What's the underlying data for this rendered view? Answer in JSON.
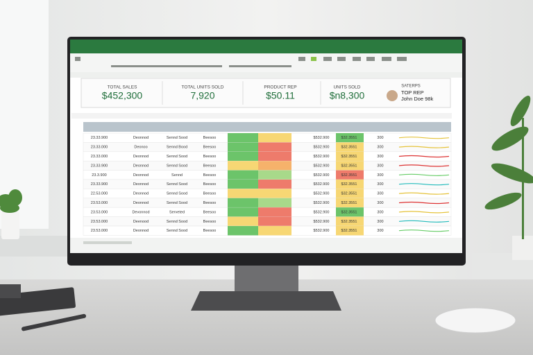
{
  "kpis": [
    {
      "label": "TOTAL SALES",
      "value": "$452,300"
    },
    {
      "label": "TOTAL UNITS SOLD",
      "value": "7,920"
    },
    {
      "label": "PRODUCT REP",
      "value": "$50.11"
    },
    {
      "label": "UNITS SOLD",
      "value": "$n8,300"
    }
  ],
  "top_rep": {
    "header": "SATERPS",
    "label": "TOP REP",
    "name": "John Doe 98k"
  },
  "table": {
    "rows": [
      [
        "23.33.900",
        "Deonnod",
        "Sennd Sood",
        "Beesoo",
        "$532.900",
        "$32.3551",
        "300"
      ],
      [
        "23.33.000",
        "Deonoo",
        "Sennd Bood",
        "Beesoo",
        "$532.900",
        "$32.3551",
        "300"
      ],
      [
        "23.33.000",
        "Deonnod",
        "Sennd Sood",
        "Beesoo",
        "$532.900",
        "$32.3551",
        "300"
      ],
      [
        "23.33.900",
        "Deonnod",
        "Sennd Sood",
        "Beesoo",
        "$532.900",
        "$32.3551",
        "300"
      ],
      [
        "23.3.900",
        "Deonnod",
        "Sennd",
        "Beesoo",
        "$532.900",
        "$32.3551",
        "300"
      ],
      [
        "23.33.900",
        "Deonnod",
        "Sennd Sood",
        "Beesoo",
        "$532.900",
        "$32.3551",
        "300"
      ],
      [
        "22.53.000",
        "Deonnod",
        "Sennd Sood",
        "Beesoo",
        "$532.900",
        "$32.3551",
        "300"
      ],
      [
        "23.53.000",
        "Deonnod",
        "Sennd Sood",
        "Beesoo",
        "$532.900",
        "$32.3551",
        "300"
      ],
      [
        "23.53.000",
        "Devonnod",
        "Serveted",
        "Beesoo",
        "$532.900",
        "$32.3551",
        "300"
      ],
      [
        "23.53.000",
        "Deenood",
        "Sennd Sood",
        "Beesoo",
        "$532.900",
        "$32.3551",
        "300"
      ],
      [
        "23.53.000",
        "Deonnod",
        "Sennd Sood",
        "Beesoo",
        "$532.900",
        "$32.3551",
        "300"
      ]
    ]
  }
}
